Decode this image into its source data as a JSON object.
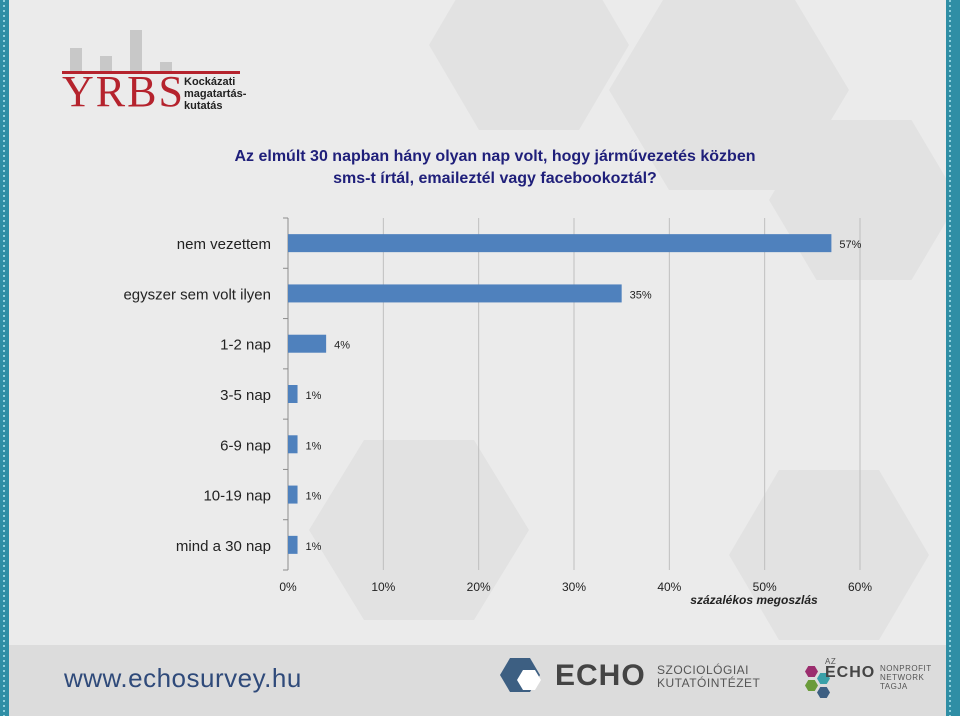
{
  "logo": {
    "name": "YRBS",
    "subtitle_lines": [
      "Kockázati",
      "magatartás-",
      "kutatás"
    ]
  },
  "title_lines": [
    "Az elmúlt 30 napban hány olyan nap volt, hogy járművezetés közben",
    "sms-t írtál, emaileztél vagy facebookoztál?"
  ],
  "chart_data": {
    "type": "bar",
    "orientation": "horizontal",
    "categories": [
      "nem vezettem",
      "egyszer sem volt ilyen",
      "1-2 nap",
      "3-5 nap",
      "6-9 nap",
      "10-19 nap",
      "mind a 30 nap"
    ],
    "values": [
      57,
      35,
      4,
      1,
      1,
      1,
      1
    ],
    "value_labels": [
      "57%",
      "35%",
      "4%",
      "1%",
      "1%",
      "1%",
      "1%"
    ],
    "xlim": [
      0,
      60
    ],
    "xticks": [
      0,
      10,
      20,
      30,
      40,
      50,
      60
    ],
    "xtick_labels": [
      "0%",
      "10%",
      "20%",
      "30%",
      "40%",
      "50%",
      "60%"
    ],
    "xlabel": "százalékos megoszlás",
    "grid": true,
    "bar_color": "#4f81bd",
    "grid_color": "#bfbfbf"
  },
  "footer": {
    "website": "www.echosurvey.hu",
    "echo_brand": "ECHO",
    "echo_subtitle_lines": [
      "SZOCIOLÓGIAI",
      "KUTATÓINTÉZET"
    ],
    "network_prefix": "AZ",
    "network_brand": "ECHO",
    "network_lines": [
      "NONPROFIT",
      "NETWORK",
      "TAGJA"
    ]
  }
}
